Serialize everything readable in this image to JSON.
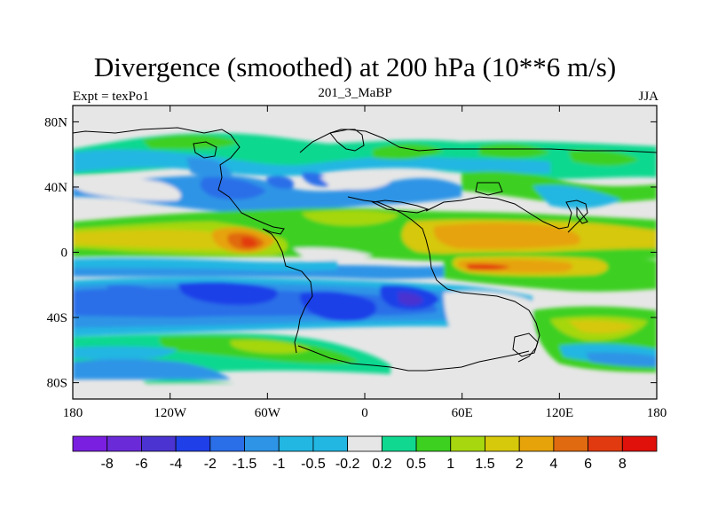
{
  "title": "Divergence (smoothed) at 200 hPa (10**6 m/s)",
  "left_label": "Expt = texPo1",
  "center_label": "201_3_MaBP",
  "right_label": "JJA",
  "lat_ticks": [
    {
      "value": 80,
      "label": "80N"
    },
    {
      "value": 40,
      "label": "40N"
    },
    {
      "value": 0,
      "label": "0"
    },
    {
      "value": -40,
      "label": "40S"
    },
    {
      "value": -80,
      "label": "80S"
    }
  ],
  "lon_ticks": [
    {
      "value": -180,
      "label": "180"
    },
    {
      "value": -120,
      "label": "120W"
    },
    {
      "value": -60,
      "label": "60W"
    },
    {
      "value": 0,
      "label": "0"
    },
    {
      "value": 60,
      "label": "60E"
    },
    {
      "value": 120,
      "label": "120E"
    },
    {
      "value": 180,
      "label": "180"
    }
  ],
  "colors": {
    "purple_dark": "#7a1fe0",
    "purple": "#6a2ad8",
    "indigo": "#4a33d0",
    "blue_dark": "#1f3fe8",
    "blue": "#2a6ee8",
    "blue_mid": "#2e94e6",
    "blue_light": "#22b6e2",
    "neutral": "#e6e6e6",
    "green_light": "#10d890",
    "green": "#3dd020",
    "yellow_green": "#a6d70f",
    "yellow": "#d6c80a",
    "orange": "#e6a30a",
    "orange_dark": "#e06a10",
    "red_orange": "#e23a10",
    "red": "#e0100a"
  },
  "colorbar": {
    "levels": [
      "-8",
      "-6",
      "-4",
      "-2",
      "-1.5",
      "-1",
      "-0.5",
      "-0.2",
      "0.2",
      "0.5",
      "1",
      "1.5",
      "2",
      "4",
      "6",
      "8"
    ]
  }
}
